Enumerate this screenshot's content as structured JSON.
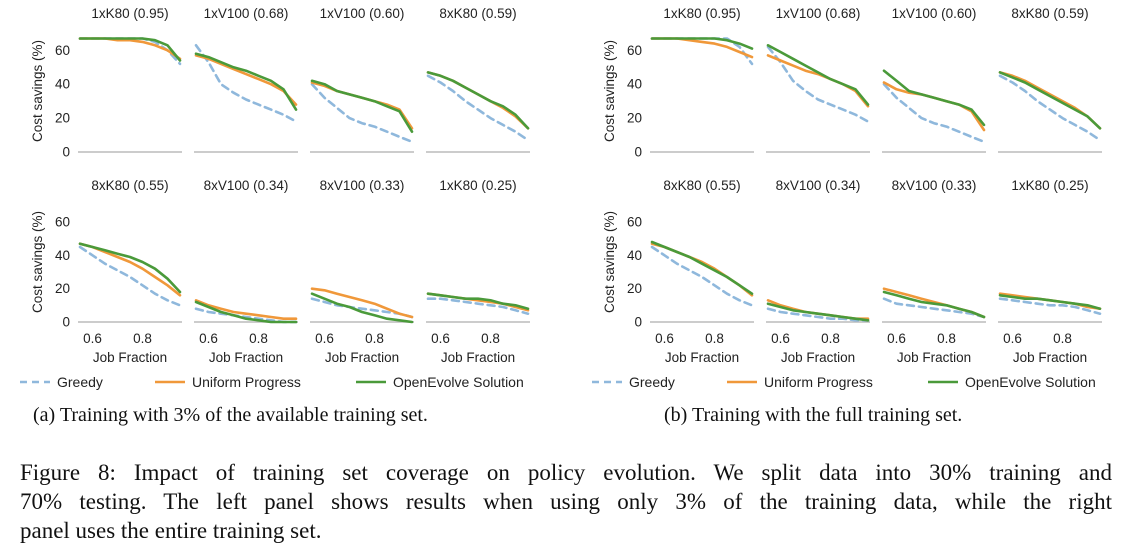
{
  "colors": {
    "greedy": "#8fb8dc",
    "uniform_progress": "#f0983a",
    "openevolve_solution": "#4a9a3a",
    "axis_text": "#222222",
    "zero_line": "#bbbbbb"
  },
  "legend": {
    "greedy": "Greedy",
    "uniform_progress": "Uniform Progress",
    "openevolve_solution": "OpenEvolve Solution"
  },
  "captions": {
    "panel_a": "(a) Training with 3% of the available training set.",
    "panel_b": "(b) Training with the full training set.",
    "figure_lines": [
      "Figure 8: Impact of training set coverage on policy evolution. We split data into 30% training and",
      "70% testing. The left panel shows results when using only 3% of the training data, while the right",
      "panel uses the entire training set."
    ]
  },
  "chart_data": [
    {
      "panel": "a",
      "type": "line",
      "title": "(a) Training with 3% of the available training set.",
      "ylabel": "Cost savings (%)",
      "xlabel": "Job Fraction",
      "ylim": [
        0,
        72
      ],
      "yticks": [
        0,
        20,
        40,
        60
      ],
      "xlim": [
        0.55,
        0.95
      ],
      "xticks": [
        0.6,
        0.8
      ],
      "xtick_labels": [
        "0.6",
        "0.8"
      ],
      "x": [
        0.55,
        0.6,
        0.65,
        0.7,
        0.75,
        0.8,
        0.85,
        0.9,
        0.95
      ],
      "subplots": [
        {
          "title": "1xK80 (0.95)",
          "greedy": [
            67,
            67,
            67,
            67,
            67,
            67,
            65,
            60,
            52
          ],
          "uniform_progress": [
            67,
            67,
            67,
            66,
            66,
            65,
            63,
            60,
            55
          ],
          "openevolve_solution": [
            67,
            67,
            67,
            67,
            67,
            67,
            66,
            63,
            54
          ]
        },
        {
          "title": "1xV100 (0.68)",
          "greedy": [
            63,
            53,
            40,
            35,
            31,
            28,
            25,
            22,
            18
          ],
          "uniform_progress": [
            57,
            55,
            52,
            49,
            46,
            43,
            40,
            36,
            28
          ],
          "openevolve_solution": [
            58,
            56,
            53,
            50,
            48,
            45,
            42,
            37,
            25
          ]
        },
        {
          "title": "1xV100 (0.60)",
          "greedy": [
            40,
            32,
            26,
            20,
            17,
            15,
            12,
            9,
            6
          ],
          "uniform_progress": [
            41,
            39,
            36,
            34,
            32,
            30,
            28,
            25,
            14
          ],
          "openevolve_solution": [
            42,
            40,
            36,
            34,
            32,
            30,
            27,
            24,
            12
          ]
        },
        {
          "title": "8xK80 (0.59)",
          "greedy": [
            45,
            41,
            36,
            30,
            25,
            20,
            16,
            12,
            7
          ],
          "uniform_progress": [
            47,
            45,
            42,
            38,
            34,
            30,
            26,
            21,
            14
          ],
          "openevolve_solution": [
            47,
            45,
            42,
            38,
            34,
            30,
            27,
            22,
            14
          ]
        },
        {
          "title": "8xK80 (0.55)",
          "greedy": [
            45,
            40,
            35,
            31,
            27,
            22,
            17,
            13,
            10
          ],
          "uniform_progress": [
            47,
            45,
            42,
            39,
            36,
            32,
            27,
            22,
            16
          ],
          "openevolve_solution": [
            47,
            45,
            43,
            41,
            39,
            36,
            32,
            26,
            18
          ]
        },
        {
          "title": "8xV100 (0.34)",
          "greedy": [
            8,
            6,
            5,
            4,
            3,
            2,
            1,
            0,
            0
          ],
          "uniform_progress": [
            13,
            10,
            8,
            6,
            5,
            4,
            3,
            2,
            2
          ],
          "openevolve_solution": [
            12,
            9,
            6,
            4,
            2,
            1,
            0,
            0,
            0
          ]
        },
        {
          "title": "8xV100 (0.33)",
          "greedy": [
            14,
            12,
            10,
            9,
            8,
            7,
            6,
            5,
            3
          ],
          "uniform_progress": [
            20,
            19,
            17,
            15,
            13,
            11,
            8,
            5,
            3
          ],
          "openevolve_solution": [
            17,
            14,
            11,
            9,
            6,
            4,
            2,
            1,
            0
          ]
        },
        {
          "title": "1xK80 (0.25)",
          "greedy": [
            14,
            14,
            13,
            12,
            11,
            10,
            9,
            7,
            5
          ],
          "uniform_progress": [
            17,
            16,
            15,
            14,
            13,
            12,
            11,
            9,
            7
          ],
          "openevolve_solution": [
            17,
            16,
            15,
            14,
            14,
            13,
            11,
            10,
            8
          ]
        }
      ]
    },
    {
      "panel": "b",
      "type": "line",
      "title": "(b) Training with the full training set.",
      "ylabel": "Cost savings (%)",
      "xlabel": "Job Fraction",
      "ylim": [
        0,
        72
      ],
      "yticks": [
        0,
        20,
        40,
        60
      ],
      "xlim": [
        0.55,
        0.95
      ],
      "xticks": [
        0.6,
        0.8
      ],
      "xtick_labels": [
        "0.6",
        "0.8"
      ],
      "x": [
        0.55,
        0.6,
        0.65,
        0.7,
        0.75,
        0.8,
        0.85,
        0.9,
        0.95
      ],
      "subplots": [
        {
          "title": "1xK80 (0.95)",
          "greedy": [
            67,
            67,
            67,
            67,
            67,
            67,
            67,
            62,
            52
          ],
          "uniform_progress": [
            67,
            67,
            67,
            66,
            65,
            64,
            62,
            59,
            56
          ],
          "openevolve_solution": [
            67,
            67,
            67,
            67,
            67,
            67,
            66,
            64,
            61
          ]
        },
        {
          "title": "1xV100 (0.68)",
          "greedy": [
            62,
            53,
            42,
            36,
            31,
            28,
            25,
            22,
            18
          ],
          "uniform_progress": [
            57,
            54,
            51,
            48,
            46,
            43,
            40,
            36,
            27
          ],
          "openevolve_solution": [
            63,
            59,
            55,
            51,
            47,
            43,
            40,
            37,
            28
          ]
        },
        {
          "title": "1xV100 (0.60)",
          "greedy": [
            40,
            32,
            26,
            20,
            17,
            15,
            12,
            9,
            6
          ],
          "uniform_progress": [
            41,
            37,
            35,
            34,
            32,
            30,
            28,
            24,
            13
          ],
          "openevolve_solution": [
            48,
            42,
            36,
            34,
            32,
            30,
            28,
            25,
            16
          ]
        },
        {
          "title": "8xK80 (0.59)",
          "greedy": [
            45,
            41,
            36,
            30,
            25,
            20,
            16,
            12,
            7
          ],
          "uniform_progress": [
            47,
            45,
            42,
            38,
            34,
            30,
            26,
            21,
            14
          ],
          "openevolve_solution": [
            47,
            44,
            41,
            37,
            33,
            29,
            25,
            21,
            14
          ]
        },
        {
          "title": "8xK80 (0.55)",
          "greedy": [
            45,
            40,
            35,
            31,
            27,
            22,
            17,
            13,
            10
          ],
          "uniform_progress": [
            47,
            45,
            42,
            39,
            36,
            32,
            27,
            22,
            16
          ],
          "openevolve_solution": [
            48,
            45,
            42,
            39,
            35,
            31,
            27,
            22,
            17
          ]
        },
        {
          "title": "8xV100 (0.34)",
          "greedy": [
            8,
            6,
            5,
            4,
            3,
            2,
            2,
            1,
            1
          ],
          "uniform_progress": [
            13,
            10,
            8,
            6,
            5,
            4,
            3,
            2,
            2
          ],
          "openevolve_solution": [
            11,
            9,
            7,
            6,
            5,
            4,
            3,
            2,
            1
          ]
        },
        {
          "title": "8xV100 (0.33)",
          "greedy": [
            14,
            11,
            10,
            9,
            8,
            7,
            6,
            5,
            3
          ],
          "uniform_progress": [
            20,
            18,
            16,
            14,
            12,
            10,
            8,
            6,
            3
          ],
          "openevolve_solution": [
            18,
            16,
            14,
            12,
            11,
            10,
            8,
            6,
            3
          ]
        },
        {
          "title": "1xK80 (0.25)",
          "greedy": [
            14,
            13,
            12,
            11,
            10,
            10,
            9,
            7,
            5
          ],
          "uniform_progress": [
            17,
            16,
            15,
            14,
            13,
            12,
            11,
            9,
            8
          ],
          "openevolve_solution": [
            16,
            15,
            14,
            14,
            13,
            12,
            11,
            10,
            8
          ]
        }
      ]
    }
  ]
}
